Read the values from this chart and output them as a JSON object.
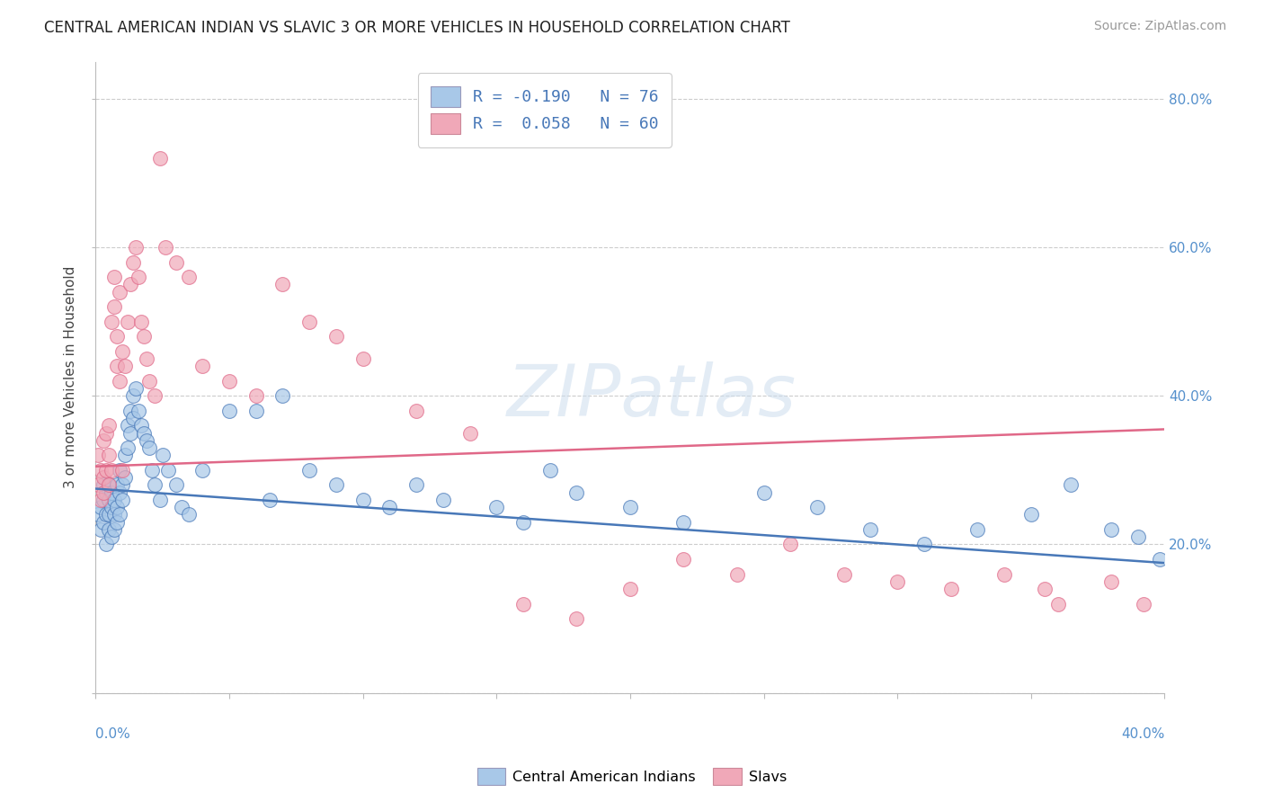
{
  "title": "CENTRAL AMERICAN INDIAN VS SLAVIC 3 OR MORE VEHICLES IN HOUSEHOLD CORRELATION CHART",
  "source": "Source: ZipAtlas.com",
  "ylabel": "3 or more Vehicles in Household",
  "legend_r1": "-0.190",
  "legend_n1": "76",
  "legend_r2": "0.058",
  "legend_n2": "60",
  "color_blue": "#a8c8e8",
  "color_pink": "#f0a8b8",
  "color_blue_line": "#4878b8",
  "color_pink_line": "#e06888",
  "color_rn": "#4878b8",
  "xlim": [
    0.0,
    0.4
  ],
  "ylim": [
    0.0,
    0.85
  ],
  "blue_line_start": 0.275,
  "blue_line_end": 0.175,
  "pink_line_start": 0.305,
  "pink_line_end": 0.355,
  "blue_x": [
    0.001,
    0.002,
    0.002,
    0.003,
    0.003,
    0.003,
    0.004,
    0.004,
    0.004,
    0.005,
    0.005,
    0.005,
    0.005,
    0.006,
    0.006,
    0.006,
    0.007,
    0.007,
    0.007,
    0.008,
    0.008,
    0.008,
    0.009,
    0.009,
    0.009,
    0.01,
    0.01,
    0.011,
    0.011,
    0.012,
    0.012,
    0.013,
    0.013,
    0.014,
    0.014,
    0.015,
    0.016,
    0.017,
    0.018,
    0.019,
    0.02,
    0.021,
    0.022,
    0.024,
    0.025,
    0.027,
    0.03,
    0.032,
    0.035,
    0.04,
    0.05,
    0.06,
    0.065,
    0.07,
    0.08,
    0.09,
    0.1,
    0.11,
    0.12,
    0.13,
    0.15,
    0.16,
    0.17,
    0.18,
    0.2,
    0.22,
    0.25,
    0.27,
    0.29,
    0.31,
    0.33,
    0.35,
    0.365,
    0.38,
    0.39,
    0.398
  ],
  "blue_y": [
    0.24,
    0.22,
    0.25,
    0.26,
    0.23,
    0.28,
    0.24,
    0.27,
    0.2,
    0.26,
    0.22,
    0.28,
    0.24,
    0.25,
    0.21,
    0.27,
    0.26,
    0.22,
    0.24,
    0.28,
    0.25,
    0.23,
    0.27,
    0.24,
    0.3,
    0.28,
    0.26,
    0.32,
    0.29,
    0.36,
    0.33,
    0.38,
    0.35,
    0.4,
    0.37,
    0.41,
    0.38,
    0.36,
    0.35,
    0.34,
    0.33,
    0.3,
    0.28,
    0.26,
    0.32,
    0.3,
    0.28,
    0.25,
    0.24,
    0.3,
    0.38,
    0.38,
    0.26,
    0.4,
    0.3,
    0.28,
    0.26,
    0.25,
    0.28,
    0.26,
    0.25,
    0.23,
    0.3,
    0.27,
    0.25,
    0.23,
    0.27,
    0.25,
    0.22,
    0.2,
    0.22,
    0.24,
    0.28,
    0.22,
    0.21,
    0.18
  ],
  "pink_x": [
    0.001,
    0.001,
    0.002,
    0.002,
    0.003,
    0.003,
    0.003,
    0.004,
    0.004,
    0.005,
    0.005,
    0.005,
    0.006,
    0.006,
    0.007,
    0.007,
    0.008,
    0.008,
    0.009,
    0.009,
    0.01,
    0.01,
    0.011,
    0.012,
    0.013,
    0.014,
    0.015,
    0.016,
    0.017,
    0.018,
    0.019,
    0.02,
    0.022,
    0.024,
    0.026,
    0.03,
    0.035,
    0.04,
    0.05,
    0.06,
    0.07,
    0.08,
    0.09,
    0.1,
    0.12,
    0.14,
    0.16,
    0.18,
    0.2,
    0.22,
    0.24,
    0.26,
    0.28,
    0.3,
    0.32,
    0.34,
    0.355,
    0.36,
    0.38,
    0.392
  ],
  "pink_y": [
    0.28,
    0.32,
    0.3,
    0.26,
    0.34,
    0.29,
    0.27,
    0.35,
    0.3,
    0.28,
    0.36,
    0.32,
    0.3,
    0.5,
    0.56,
    0.52,
    0.48,
    0.44,
    0.54,
    0.42,
    0.3,
    0.46,
    0.44,
    0.5,
    0.55,
    0.58,
    0.6,
    0.56,
    0.5,
    0.48,
    0.45,
    0.42,
    0.4,
    0.72,
    0.6,
    0.58,
    0.56,
    0.44,
    0.42,
    0.4,
    0.55,
    0.5,
    0.48,
    0.45,
    0.38,
    0.35,
    0.12,
    0.1,
    0.14,
    0.18,
    0.16,
    0.2,
    0.16,
    0.15,
    0.14,
    0.16,
    0.14,
    0.12,
    0.15,
    0.12
  ]
}
